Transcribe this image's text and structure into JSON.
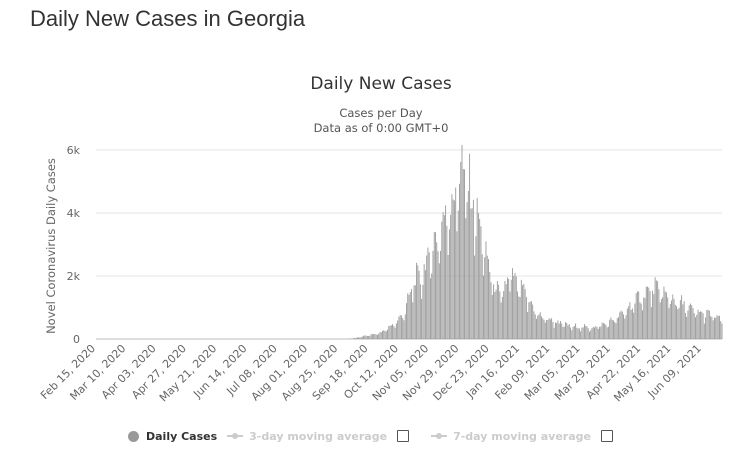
{
  "page": {
    "title": "Daily New Cases in Georgia"
  },
  "chart_data": {
    "type": "bar",
    "title": "Daily New Cases",
    "subtitle": "Cases per Day",
    "subtitle2": "Data as of 0:00 GMT+0",
    "xlabel": "",
    "ylabel": "Novel Coronavirus Daily Cases",
    "ylim": [
      0,
      6000
    ],
    "yticks": [
      0,
      2000,
      4000,
      6000
    ],
    "ytick_labels": [
      "0",
      "2k",
      "4k",
      "6k"
    ],
    "grid": true,
    "legend_position": "bottom",
    "x_start": "Feb 15, 2020",
    "x_end": "Jun 25, 2021",
    "xtick_labels": [
      "Feb 15, 2020",
      "Mar 10, 2020",
      "Apr 03, 2020",
      "Apr 27, 2020",
      "May 21, 2020",
      "Jun 14, 2020",
      "Jul 08, 2020",
      "Aug 01, 2020",
      "Aug 25, 2020",
      "Sep 18, 2020",
      "Oct 12, 2020",
      "Nov 05, 2020",
      "Nov 29, 2020",
      "Dec 23, 2020",
      "Jan 16, 2021",
      "Feb 09, 2021",
      "Mar 05, 2021",
      "Mar 29, 2021",
      "Apr 22, 2021",
      "May 16, 2021",
      "Jun 09, 2021"
    ],
    "series": [
      {
        "name": "Daily Cases",
        "color": "#999999",
        "visible": true,
        "points": [
          [
            "Feb 15, 2020",
            0
          ],
          [
            "Aug 31, 2020",
            0
          ],
          [
            "Sep 06, 2020",
            20
          ],
          [
            "Sep 12, 2020",
            70
          ],
          [
            "Sep 18, 2020",
            120
          ],
          [
            "Sep 24, 2020",
            160
          ],
          [
            "Sep 30, 2020",
            250
          ],
          [
            "Oct 06, 2020",
            420
          ],
          [
            "Oct 12, 2020",
            600
          ],
          [
            "Oct 18, 2020",
            1000
          ],
          [
            "Oct 24, 2020",
            1850
          ],
          [
            "Oct 30, 2020",
            1950
          ],
          [
            "Nov 05, 2020",
            2600
          ],
          [
            "Nov 11, 2020",
            3100
          ],
          [
            "Nov 17, 2020",
            3700
          ],
          [
            "Nov 23, 2020",
            4300
          ],
          [
            "Nov 27, 2020",
            4700
          ],
          [
            "Dec 01, 2020",
            5400
          ],
          [
            "Dec 06, 2020",
            4700
          ],
          [
            "Dec 11, 2020",
            4100
          ],
          [
            "Dec 16, 2020",
            3300
          ],
          [
            "Dec 21, 2020",
            2400
          ],
          [
            "Dec 27, 2020",
            1600
          ],
          [
            "Jan 02, 2021",
            1400
          ],
          [
            "Jan 08, 2021",
            2000
          ],
          [
            "Jan 14, 2021",
            1700
          ],
          [
            "Jan 20, 2021",
            1400
          ],
          [
            "Jan 26, 2021",
            1000
          ],
          [
            "Feb 01, 2021",
            700
          ],
          [
            "Feb 09, 2021",
            600
          ],
          [
            "Feb 17, 2021",
            500
          ],
          [
            "Feb 25, 2021",
            400
          ],
          [
            "Mar 05, 2021",
            380
          ],
          [
            "Mar 13, 2021",
            350
          ],
          [
            "Mar 21, 2021",
            420
          ],
          [
            "Mar 29, 2021",
            550
          ],
          [
            "Apr 06, 2021",
            750
          ],
          [
            "Apr 14, 2021",
            1050
          ],
          [
            "Apr 22, 2021",
            1350
          ],
          [
            "Apr 28, 2021",
            1500
          ],
          [
            "May 04, 2021",
            1600
          ],
          [
            "May 10, 2021",
            1400
          ],
          [
            "May 16, 2021",
            1250
          ],
          [
            "May 24, 2021",
            1100
          ],
          [
            "Jun 01, 2021",
            900
          ],
          [
            "Jun 09, 2021",
            800
          ],
          [
            "Jun 17, 2021",
            750
          ],
          [
            "Jun 25, 2021",
            600
          ]
        ]
      },
      {
        "name": "3-day moving average",
        "color": "#cccccc",
        "visible": false
      },
      {
        "name": "7-day moving average",
        "color": "#cccccc",
        "visible": false
      }
    ]
  }
}
